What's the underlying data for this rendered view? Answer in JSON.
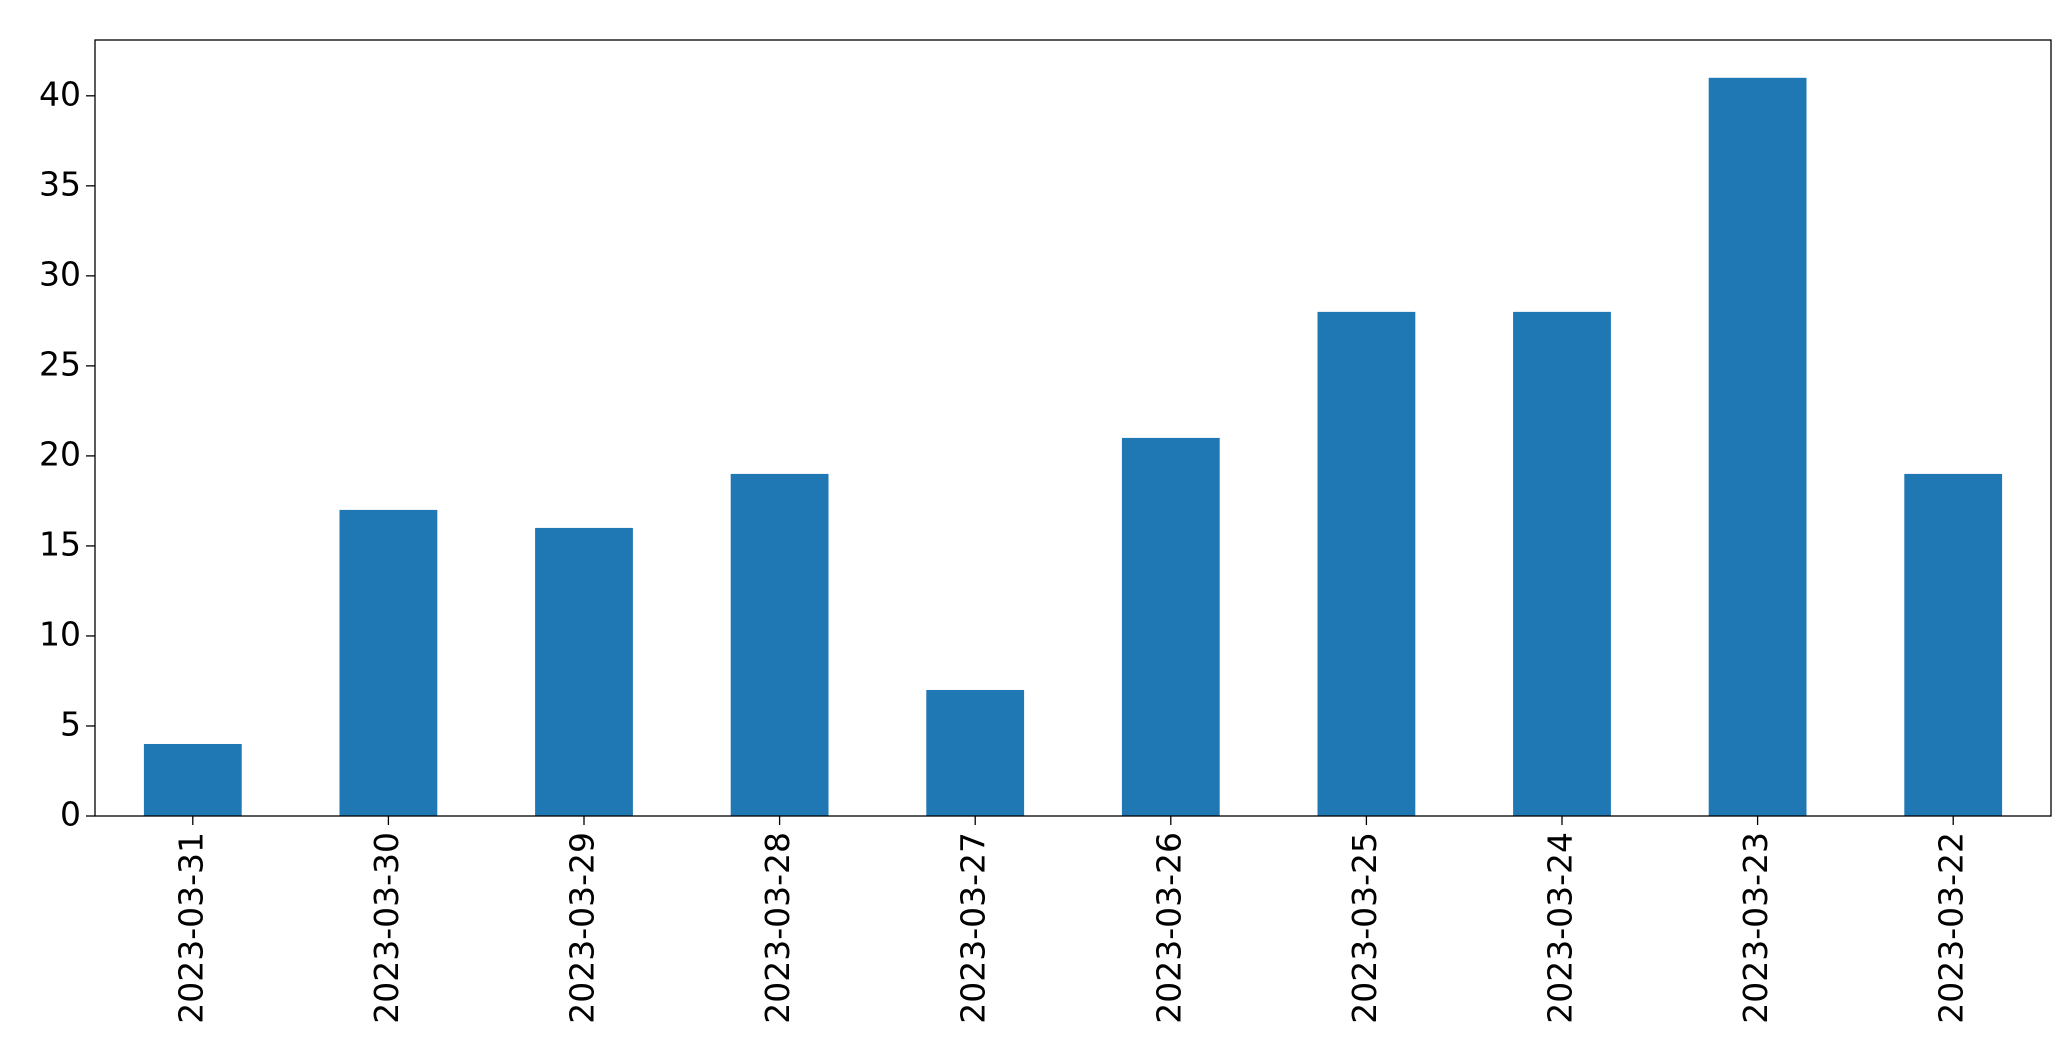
{
  "chart_data": {
    "type": "bar",
    "categories": [
      "2023-03-31",
      "2023-03-30",
      "2023-03-29",
      "2023-03-28",
      "2023-03-27",
      "2023-03-26",
      "2023-03-25",
      "2023-03-24",
      "2023-03-23",
      "2023-03-22"
    ],
    "values": [
      4,
      17,
      16,
      19,
      7,
      21,
      28,
      28,
      41,
      19
    ],
    "color": "#1f77b4",
    "ylim": [
      0,
      43.1
    ],
    "yticks": [
      0,
      5,
      10,
      15,
      20,
      25,
      30,
      35,
      40
    ],
    "grid": false
  }
}
